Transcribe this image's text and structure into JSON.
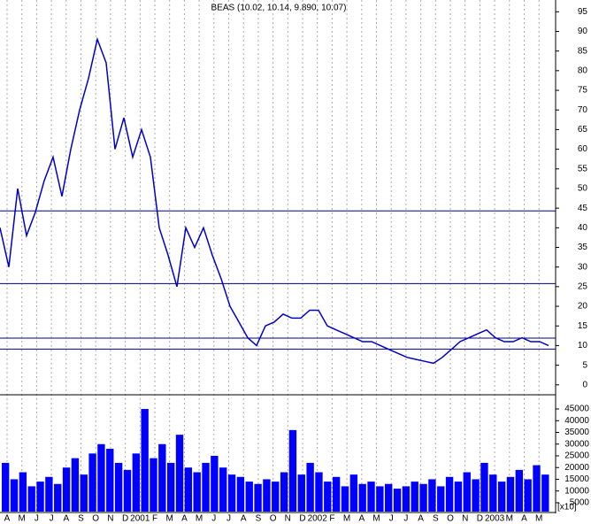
{
  "chart_data": {
    "type": "stock",
    "title": "BEAS (10.02, 10.14, 9.890, 10.07)",
    "month_labels": [
      "A",
      "M",
      "J",
      "J",
      "A",
      "S",
      "O",
      "N",
      "D",
      "2001",
      "F",
      "M",
      "A",
      "M",
      "J",
      "J",
      "A",
      "S",
      "O",
      "N",
      "D",
      "2002",
      "F",
      "M",
      "A",
      "M",
      "J",
      "J",
      "A",
      "S",
      "O",
      "N",
      "D",
      "2003",
      "M",
      "A",
      "M"
    ],
    "price": {
      "color": "#0000cc",
      "values": [
        40,
        30,
        50,
        38,
        44,
        52,
        58,
        48,
        60,
        70,
        78,
        88,
        82,
        60,
        68,
        58,
        65,
        58,
        40,
        33,
        25,
        40,
        35,
        40,
        33,
        27,
        20,
        16,
        12,
        10,
        15,
        16,
        18,
        17,
        17,
        19,
        19,
        15,
        14,
        13,
        12,
        11,
        11,
        10,
        9,
        8,
        7,
        6.5,
        6,
        5.5,
        7,
        9,
        11,
        12,
        13,
        14,
        12,
        11,
        11,
        12,
        11,
        11,
        10
      ],
      "ylim": [
        -2.3,
        98
      ],
      "yticks": [
        0,
        5,
        10,
        15,
        20,
        25,
        30,
        35,
        40,
        45,
        50,
        55,
        60,
        65,
        70,
        75,
        80,
        85,
        90,
        95
      ]
    },
    "hlines": [
      44.3,
      25.8,
      11.9,
      9.1
    ],
    "volume": {
      "color": "#0000ff",
      "multiplier": "[x10]",
      "values": [
        22000,
        15000,
        18000,
        12000,
        14000,
        16000,
        13000,
        20000,
        24000,
        17000,
        26000,
        30000,
        28000,
        22000,
        19000,
        26000,
        45000,
        24000,
        30000,
        22000,
        34000,
        20000,
        18000,
        22000,
        25000,
        20000,
        17000,
        16000,
        14000,
        13000,
        15000,
        14000,
        18000,
        36000,
        17000,
        22000,
        18000,
        14000,
        16000,
        12000,
        17000,
        13000,
        14000,
        12000,
        13000,
        11000,
        12000,
        14000,
        13000,
        15000,
        12000,
        16000,
        14000,
        18000,
        15000,
        22000,
        17000,
        14000,
        16000,
        19000,
        15000,
        21000,
        17000
      ],
      "ylim": [
        1200,
        50300
      ],
      "yticks": [
        5000,
        10000,
        15000,
        20000,
        25000,
        30000,
        35000,
        40000,
        45000
      ]
    }
  }
}
